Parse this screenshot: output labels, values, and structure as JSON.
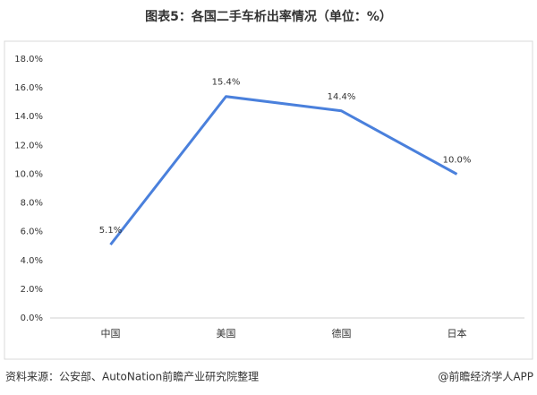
{
  "chart_data": {
    "type": "line",
    "title": "图表5：各国二手车析出率情况（单位：%）",
    "categories": [
      "中国",
      "美国",
      "德国",
      "日本"
    ],
    "values": [
      5.1,
      15.4,
      14.4,
      10.0
    ],
    "value_labels": [
      "5.1%",
      "15.4%",
      "14.4%",
      "10.0%"
    ],
    "color": "#4a80dc",
    "ylim": [
      0,
      18
    ],
    "yticks": [
      {
        "value": 0,
        "label": "0.0%"
      },
      {
        "value": 2,
        "label": "2.0%"
      },
      {
        "value": 4,
        "label": "4.0%"
      },
      {
        "value": 6,
        "label": "6.0%"
      },
      {
        "value": 8,
        "label": "8.0%"
      },
      {
        "value": 10,
        "label": "10.0%"
      },
      {
        "value": 12,
        "label": "12.0%"
      },
      {
        "value": 14,
        "label": "14.0%"
      },
      {
        "value": 16,
        "label": "16.0%"
      },
      {
        "value": 18,
        "label": "18.0%"
      }
    ],
    "grid": false,
    "source": "资料来源：公安部、AutoNation前瞻产业研究院整理",
    "credit": "@前瞻经济学人APP"
  }
}
